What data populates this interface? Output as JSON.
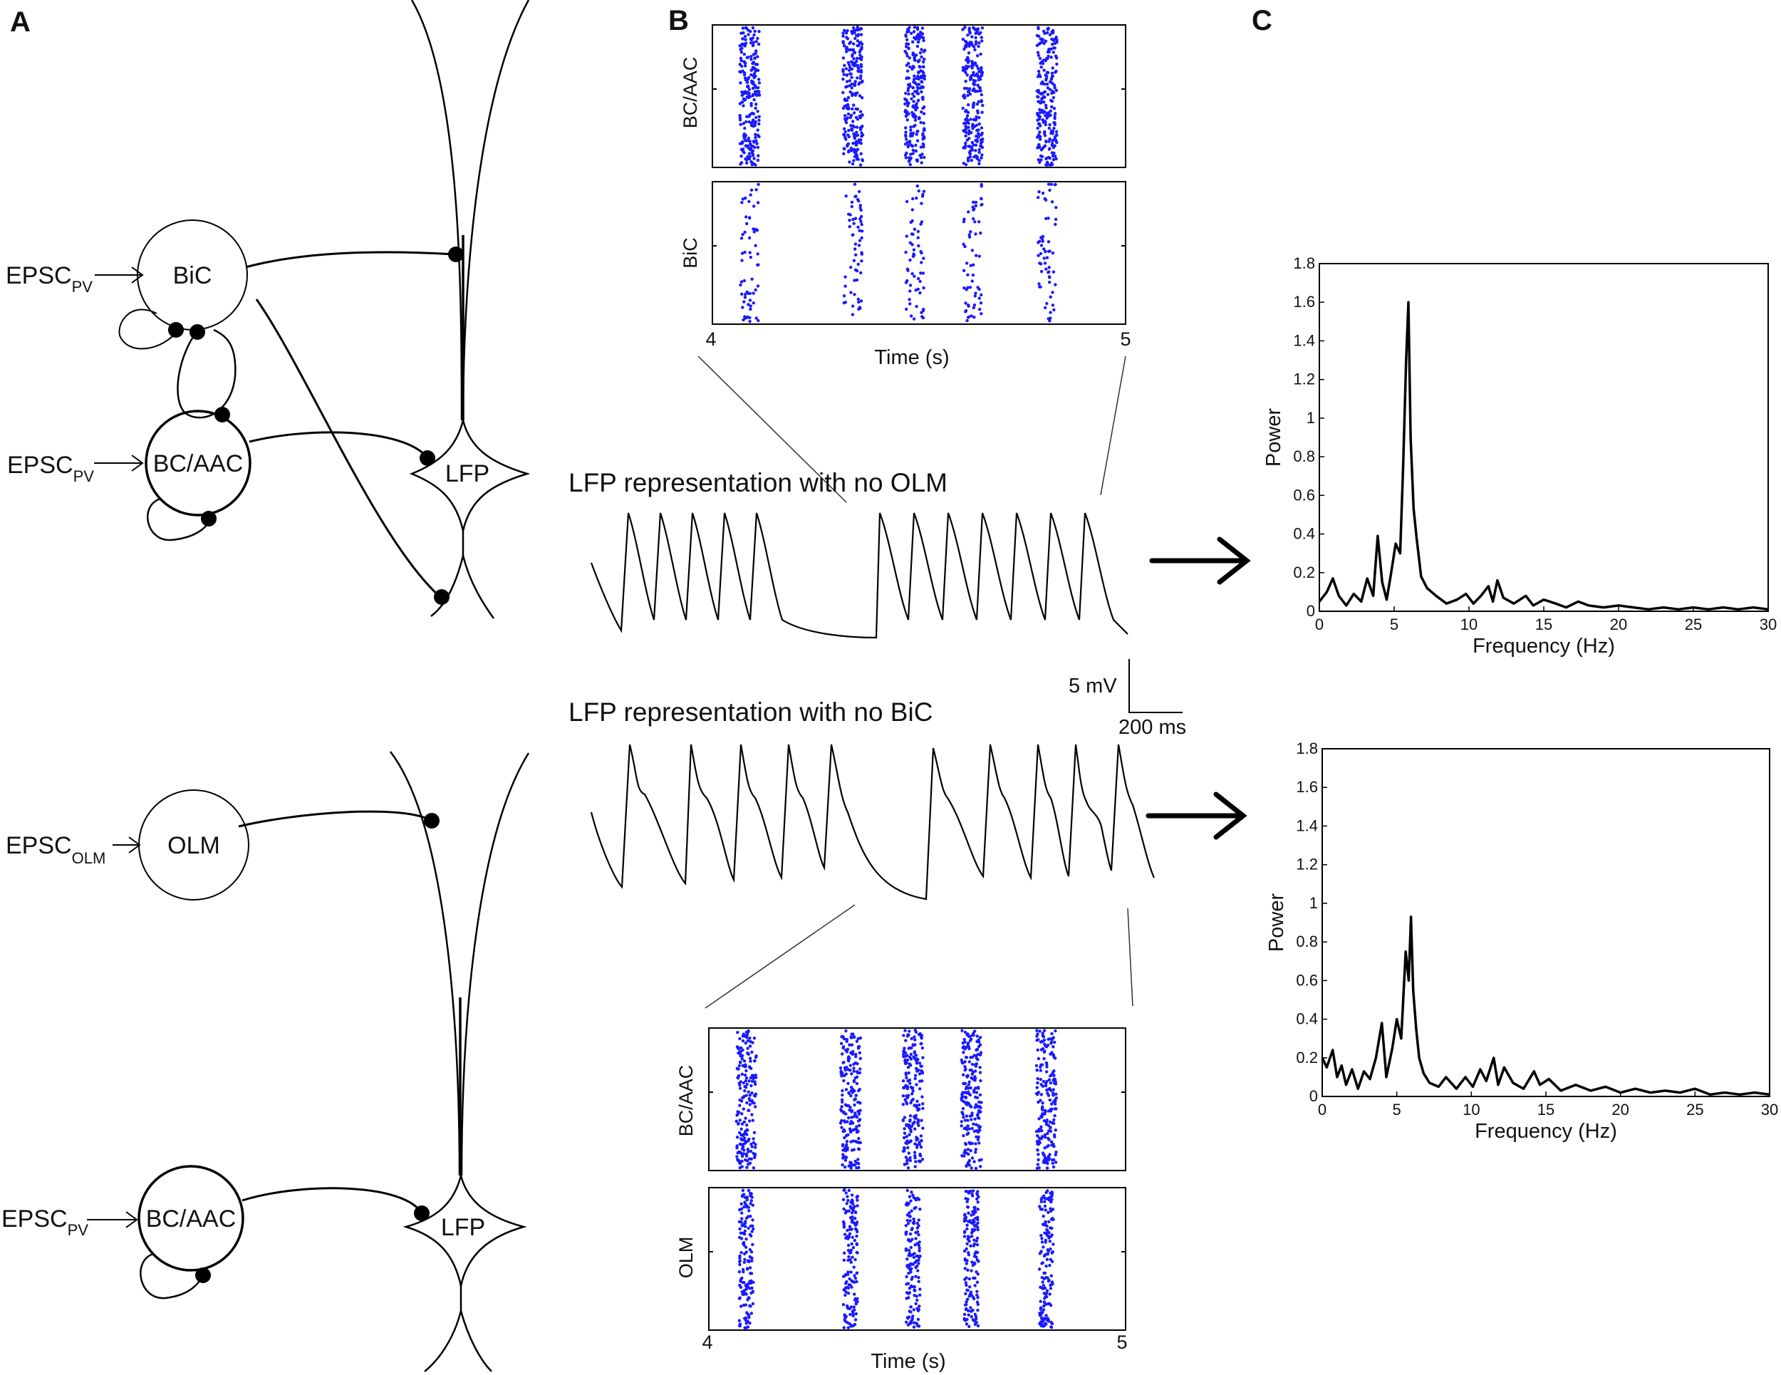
{
  "panels": {
    "a": "A",
    "b": "B",
    "c": "C"
  },
  "cells": {
    "bic": "BiC",
    "bcaac": "BC/AAC",
    "olm": "OLM",
    "lfp": "LFP",
    "epsc": "EPSC",
    "pv": "PV",
    "olm_sub": "OLM"
  },
  "traces": {
    "title_top": "LFP representation with no OLM",
    "title_bottom": "LFP representation with no BiC",
    "scale_v": "5 mV",
    "scale_t": "200 ms"
  },
  "chart_data": [
    {
      "type": "scatter",
      "subtype": "raster",
      "id": "raster-top",
      "xlabel": "Time (s)",
      "xlim": [
        4,
        5
      ],
      "xticks": [
        "4",
        "5"
      ],
      "rows": [
        "BC/AAC",
        "BiC"
      ],
      "burst_times_s": [
        4.09,
        4.34,
        4.49,
        4.63,
        4.81
      ],
      "color": "#1a1aff"
    },
    {
      "type": "scatter",
      "subtype": "raster",
      "id": "raster-bottom",
      "xlabel": "Time (s)",
      "xlim": [
        4,
        5
      ],
      "xticks": [
        "4",
        "5"
      ],
      "rows": [
        "BC/AAC",
        "OLM"
      ],
      "burst_times_s": [
        4.09,
        4.34,
        4.49,
        4.63,
        4.81
      ],
      "color": "#1a1aff"
    },
    {
      "type": "line",
      "id": "spectrum-top",
      "xlabel": "Frequency (Hz)",
      "ylabel": "Power",
      "xlim": [
        0,
        30
      ],
      "ylim": [
        0,
        1.8
      ],
      "xticks": [
        0,
        5,
        10,
        15,
        20,
        25,
        30
      ],
      "yticks": [
        0,
        0.2,
        0.4,
        0.6,
        0.8,
        1,
        1.2,
        1.4,
        1.6,
        1.8
      ],
      "x": [
        0,
        0.5,
        0.9,
        1.3,
        1.8,
        2.3,
        2.8,
        3.2,
        3.6,
        3.9,
        4.2,
        4.5,
        4.8,
        5.1,
        5.4,
        5.6,
        5.8,
        5.95,
        6.1,
        6.3,
        6.5,
        6.8,
        7.2,
        7.8,
        8.5,
        9.2,
        9.8,
        10.3,
        10.8,
        11.3,
        11.6,
        11.9,
        12.3,
        13,
        13.8,
        14.3,
        15,
        15.8,
        16.5,
        17.3,
        18,
        19,
        20,
        21,
        22,
        23,
        24,
        25,
        26,
        27,
        28,
        29,
        30
      ],
      "y": [
        0.05,
        0.1,
        0.17,
        0.08,
        0.03,
        0.09,
        0.05,
        0.17,
        0.08,
        0.39,
        0.15,
        0.06,
        0.2,
        0.35,
        0.3,
        0.75,
        1.3,
        1.6,
        0.9,
        0.53,
        0.38,
        0.18,
        0.12,
        0.08,
        0.04,
        0.06,
        0.09,
        0.04,
        0.08,
        0.13,
        0.05,
        0.16,
        0.07,
        0.04,
        0.08,
        0.03,
        0.06,
        0.04,
        0.02,
        0.05,
        0.03,
        0.02,
        0.03,
        0.02,
        0.01,
        0.02,
        0.01,
        0.02,
        0.01,
        0.02,
        0.01,
        0.02,
        0.01
      ]
    },
    {
      "type": "line",
      "id": "spectrum-bottom",
      "xlabel": "Frequency (Hz)",
      "ylabel": "Power",
      "xlim": [
        0,
        30
      ],
      "ylim": [
        0,
        1.8
      ],
      "xticks": [
        0,
        5,
        10,
        15,
        20,
        25,
        30
      ],
      "yticks": [
        0,
        0.2,
        0.4,
        0.6,
        0.8,
        1,
        1.2,
        1.4,
        1.6,
        1.8
      ],
      "x": [
        0,
        0.3,
        0.7,
        1,
        1.3,
        1.6,
        2,
        2.4,
        2.8,
        3.2,
        3.6,
        4,
        4.3,
        4.7,
        5,
        5.3,
        5.6,
        5.8,
        5.95,
        6.1,
        6.3,
        6.5,
        6.8,
        7.2,
        7.8,
        8.3,
        9,
        9.6,
        10.1,
        10.6,
        11,
        11.5,
        11.8,
        12.2,
        12.8,
        13.5,
        14.2,
        14.6,
        15.2,
        16,
        17,
        18,
        19,
        20,
        21,
        22,
        23,
        24,
        25,
        26,
        27,
        28,
        29,
        30
      ],
      "y": [
        0.2,
        0.15,
        0.24,
        0.1,
        0.16,
        0.06,
        0.14,
        0.04,
        0.13,
        0.09,
        0.2,
        0.38,
        0.1,
        0.25,
        0.4,
        0.3,
        0.75,
        0.6,
        0.93,
        0.55,
        0.35,
        0.2,
        0.12,
        0.07,
        0.05,
        0.1,
        0.04,
        0.1,
        0.05,
        0.14,
        0.08,
        0.2,
        0.06,
        0.15,
        0.07,
        0.04,
        0.13,
        0.06,
        0.09,
        0.03,
        0.06,
        0.03,
        0.05,
        0.02,
        0.04,
        0.02,
        0.03,
        0.02,
        0.04,
        0.01,
        0.02,
        0.01,
        0.02,
        0.01
      ]
    }
  ]
}
